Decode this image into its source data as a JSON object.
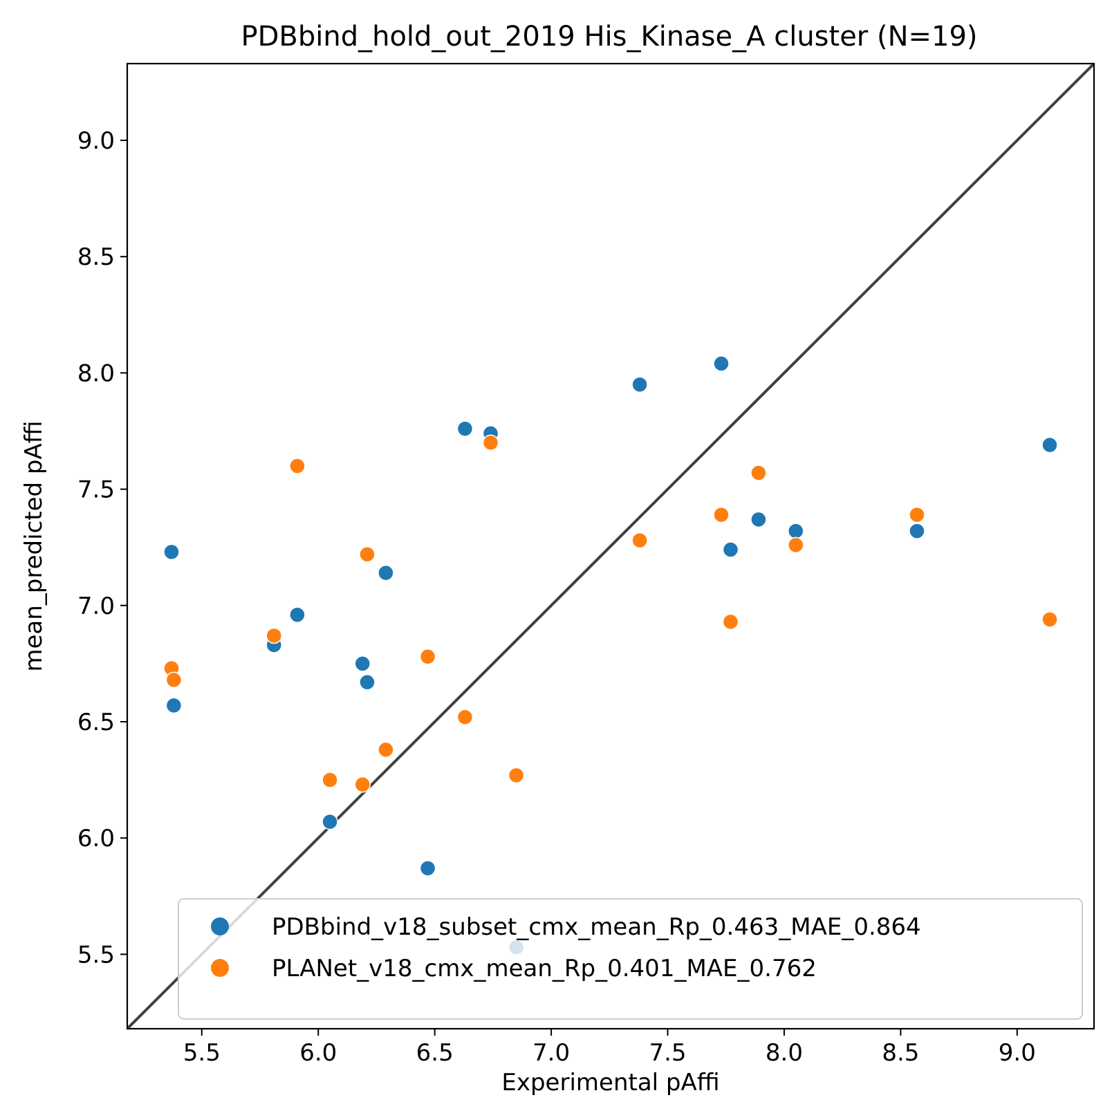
{
  "chart_data": {
    "type": "scatter",
    "title": "PDBbind_hold_out_2019 His_Kinase_A cluster (N=19)",
    "xlabel": "Experimental pAffi",
    "ylabel": "mean_predicted pAffi",
    "xlim": [
      5.18,
      9.33
    ],
    "ylim": [
      5.18,
      9.33
    ],
    "xticks": [
      "5.5",
      "6.0",
      "6.5",
      "7.0",
      "7.5",
      "8.0",
      "8.5",
      "9.0"
    ],
    "yticks": [
      "5.5",
      "6.0",
      "6.5",
      "7.0",
      "7.5",
      "8.0",
      "8.5",
      "9.0"
    ],
    "grid": false,
    "legend_position": "lower-right",
    "diagonal_line": true,
    "diagonal_color": "#404040",
    "series": [
      {
        "name": "PDBbind_v18_subset_cmx_mean_Rp_0.463_MAE_0.864",
        "color": "#1f77b4",
        "points": [
          [
            5.37,
            7.23
          ],
          [
            5.38,
            6.57
          ],
          [
            5.81,
            6.83
          ],
          [
            5.91,
            6.96
          ],
          [
            6.05,
            6.07
          ],
          [
            6.19,
            6.75
          ],
          [
            6.21,
            6.67
          ],
          [
            6.29,
            7.14
          ],
          [
            6.47,
            5.87
          ],
          [
            6.63,
            7.76
          ],
          [
            6.74,
            7.74
          ],
          [
            6.85,
            5.53
          ],
          [
            7.38,
            7.95
          ],
          [
            7.73,
            8.04
          ],
          [
            7.77,
            7.24
          ],
          [
            7.89,
            7.37
          ],
          [
            8.05,
            7.32
          ],
          [
            8.57,
            7.32
          ],
          [
            9.14,
            7.69
          ]
        ]
      },
      {
        "name": "PLANet_v18_cmx_mean_Rp_0.401_MAE_0.762",
        "color": "#ff7f0e",
        "points": [
          [
            5.37,
            6.73
          ],
          [
            5.38,
            6.68
          ],
          [
            5.81,
            6.87
          ],
          [
            5.91,
            7.6
          ],
          [
            6.05,
            6.25
          ],
          [
            6.19,
            6.23
          ],
          [
            6.21,
            7.22
          ],
          [
            6.29,
            6.38
          ],
          [
            6.47,
            6.78
          ],
          [
            6.63,
            6.52
          ],
          [
            6.74,
            7.7
          ],
          [
            6.85,
            6.27
          ],
          [
            7.38,
            7.28
          ],
          [
            7.73,
            7.39
          ],
          [
            7.77,
            6.93
          ],
          [
            7.89,
            7.57
          ],
          [
            8.05,
            7.26
          ],
          [
            8.57,
            7.39
          ],
          [
            9.14,
            6.94
          ]
        ]
      }
    ]
  }
}
